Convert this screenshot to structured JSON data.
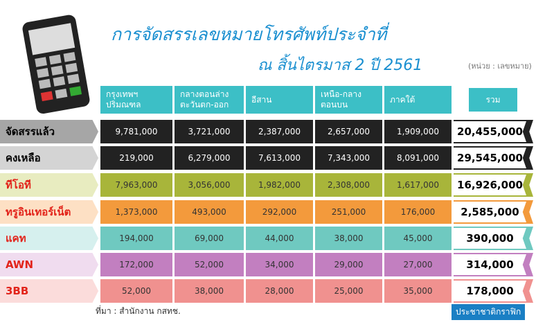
{
  "header": {
    "title": "การจัดสรรเลขหมายโทรศัพท์ประจำที่",
    "subtitle": "ณ สิ้นไตรมาส 2 ปี 2561",
    "unit": "(หน่วย : เลขหมาย)"
  },
  "table": {
    "columns": [
      [
        "กรุงเทพฯ",
        "ปริมณฑล"
      ],
      [
        "กลางตอนล่าง",
        "ตะวันตก-ออก"
      ],
      [
        "อีสาน"
      ],
      [
        "เหนือ-กลาง",
        "ตอนบน"
      ],
      [
        "ภาคใต้"
      ],
      [
        "รวม"
      ]
    ],
    "rows": [
      {
        "label": "จัดสรรแล้ว",
        "cells": [
          "9,781,000",
          "3,721,000",
          "2,387,000",
          "2,657,000",
          "1,909,000",
          "20,455,000"
        ]
      },
      {
        "label": "คงเหลือ",
        "cells": [
          "219,000",
          "6,279,000",
          "7,613,000",
          "7,343,000",
          "8,091,000",
          "29,545,000"
        ]
      },
      {
        "label": "ทีโอที",
        "cells": [
          "7,963,000",
          "3,056,000",
          "1,982,000",
          "2,308,000",
          "1,617,000",
          "16,926,000"
        ]
      },
      {
        "label": "ทรูอินเทอร์เน็ต",
        "cells": [
          "1,373,000",
          "493,000",
          "292,000",
          "251,000",
          "176,000",
          "2,585,000"
        ]
      },
      {
        "label": "แคท",
        "cells": [
          "194,000",
          "69,000",
          "44,000",
          "38,000",
          "45,000",
          "390,000"
        ]
      },
      {
        "label": "AWN",
        "cells": [
          "172,000",
          "52,000",
          "34,000",
          "29,000",
          "27,000",
          "314,000"
        ]
      },
      {
        "label": "3BB",
        "cells": [
          "52,000",
          "38,000",
          "28,000",
          "25,000",
          "35,000",
          "178,000"
        ]
      }
    ]
  },
  "footer": {
    "source": "ที่มา : สำนักงาน กสทช.",
    "brand": "ประชาชาติกราฟิก"
  }
}
